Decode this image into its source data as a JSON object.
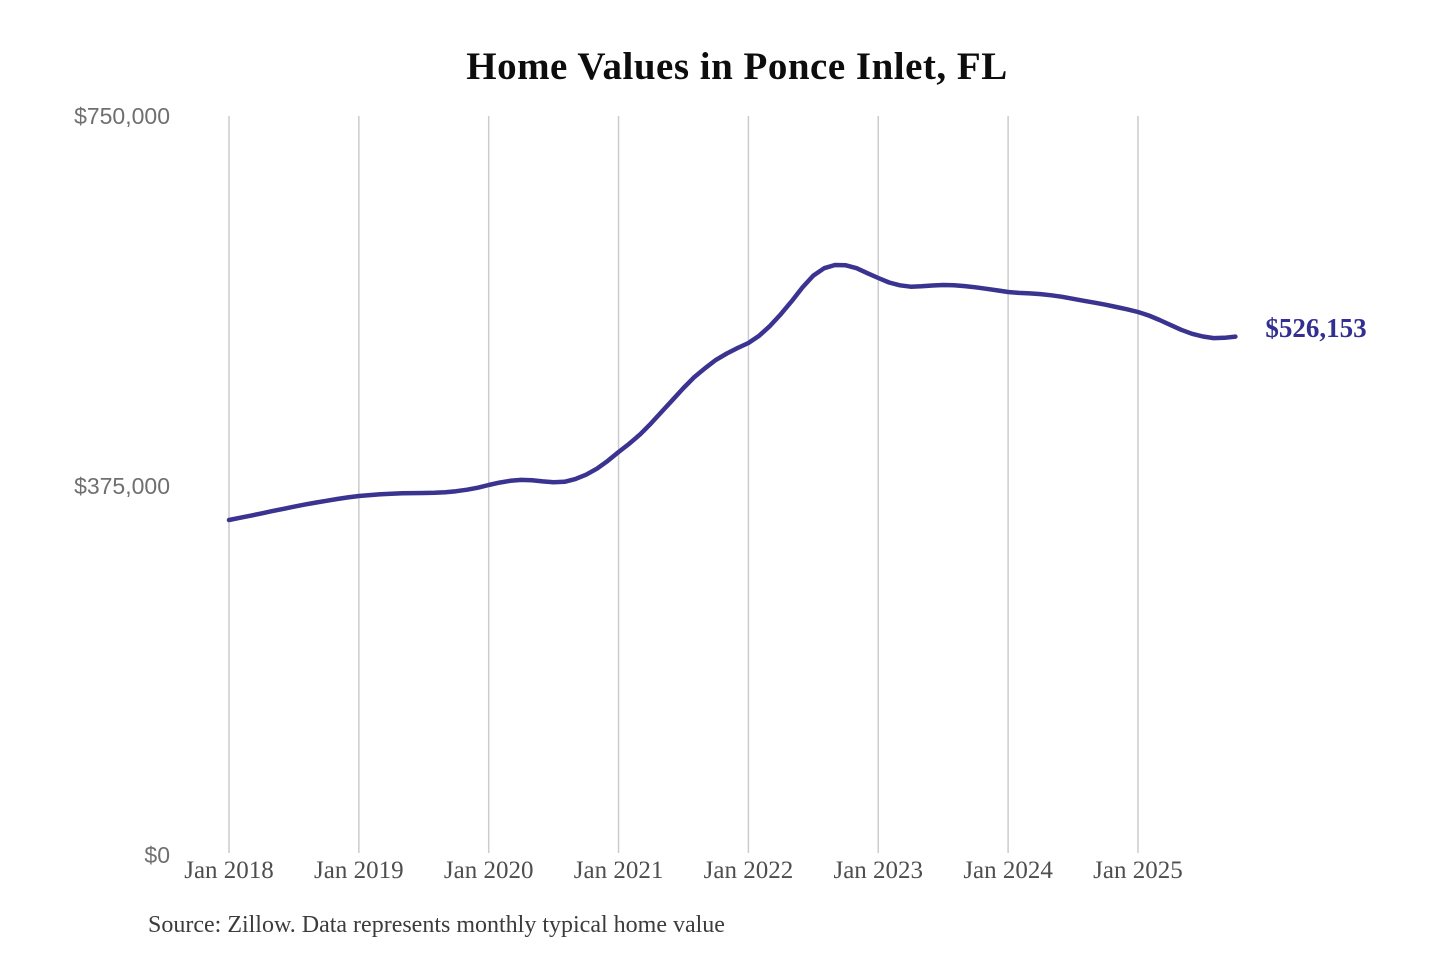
{
  "chart_data": {
    "type": "line",
    "title": "Home Values in Ponce Inlet, FL",
    "source_note": "Source: Zillow. Data represents monthly typical home value",
    "end_label": "$526,153",
    "latest_value": 526153,
    "ylim": [
      0,
      750000
    ],
    "grid": "vertical-only",
    "legend": "none",
    "y_ticks": [
      {
        "label": "$750,000",
        "value": 750000
      },
      {
        "label": "$375,000",
        "value": 375000
      },
      {
        "label": "$0",
        "value": 0
      }
    ],
    "x_ticks": [
      {
        "label": "Jan 2018",
        "year": 2018
      },
      {
        "label": "Jan 2019",
        "year": 2019
      },
      {
        "label": "Jan 2020",
        "year": 2020
      },
      {
        "label": "Jan 2021",
        "year": 2021
      },
      {
        "label": "Jan 2022",
        "year": 2022
      },
      {
        "label": "Jan 2023",
        "year": 2023
      },
      {
        "label": "Jan 2024",
        "year": 2024
      },
      {
        "label": "Jan 2025",
        "year": 2025
      }
    ],
    "series": [
      {
        "name": "Monthly typical home value",
        "frequency": "monthly",
        "start": "2018-01",
        "end": "2025-10",
        "color": "#3b3390",
        "values": [
          340000,
          342200,
          344400,
          346700,
          349000,
          351300,
          353500,
          355600,
          357600,
          359500,
          361300,
          362900,
          364300,
          365300,
          366100,
          366700,
          367100,
          367300,
          367400,
          367600,
          368200,
          369200,
          370700,
          372800,
          375500,
          377900,
          379800,
          380700,
          380300,
          379200,
          378300,
          378800,
          381500,
          386000,
          392000,
          400000,
          409000,
          417500,
          427000,
          438000,
          450000,
          462000,
          474000,
          485000,
          494000,
          502500,
          509000,
          514500,
          519600,
          527000,
          537000,
          549000,
          562000,
          576000,
          588000,
          595500,
          598800,
          598500,
          595500,
          590500,
          585600,
          581000,
          578200,
          576800,
          577200,
          578000,
          578500,
          578200,
          577400,
          576200,
          574600,
          573000,
          571400,
          570500,
          570000,
          569200,
          568000,
          566500,
          564500,
          562500,
          560500,
          558500,
          556200,
          553800,
          551100,
          547500,
          543000,
          538000,
          533000,
          529000,
          526200,
          524600,
          524900,
          526153
        ]
      }
    ]
  },
  "styles": {
    "line_color": "#3b3390",
    "end_label_color": "#332f90",
    "grid_color": "#cccccc",
    "y_tick_color": "#6f6f6f",
    "x_tick_color": "#4e4e4e",
    "title_color": "#0d0d0d",
    "source_color": "#3c3c3c",
    "background": "#ffffff"
  }
}
